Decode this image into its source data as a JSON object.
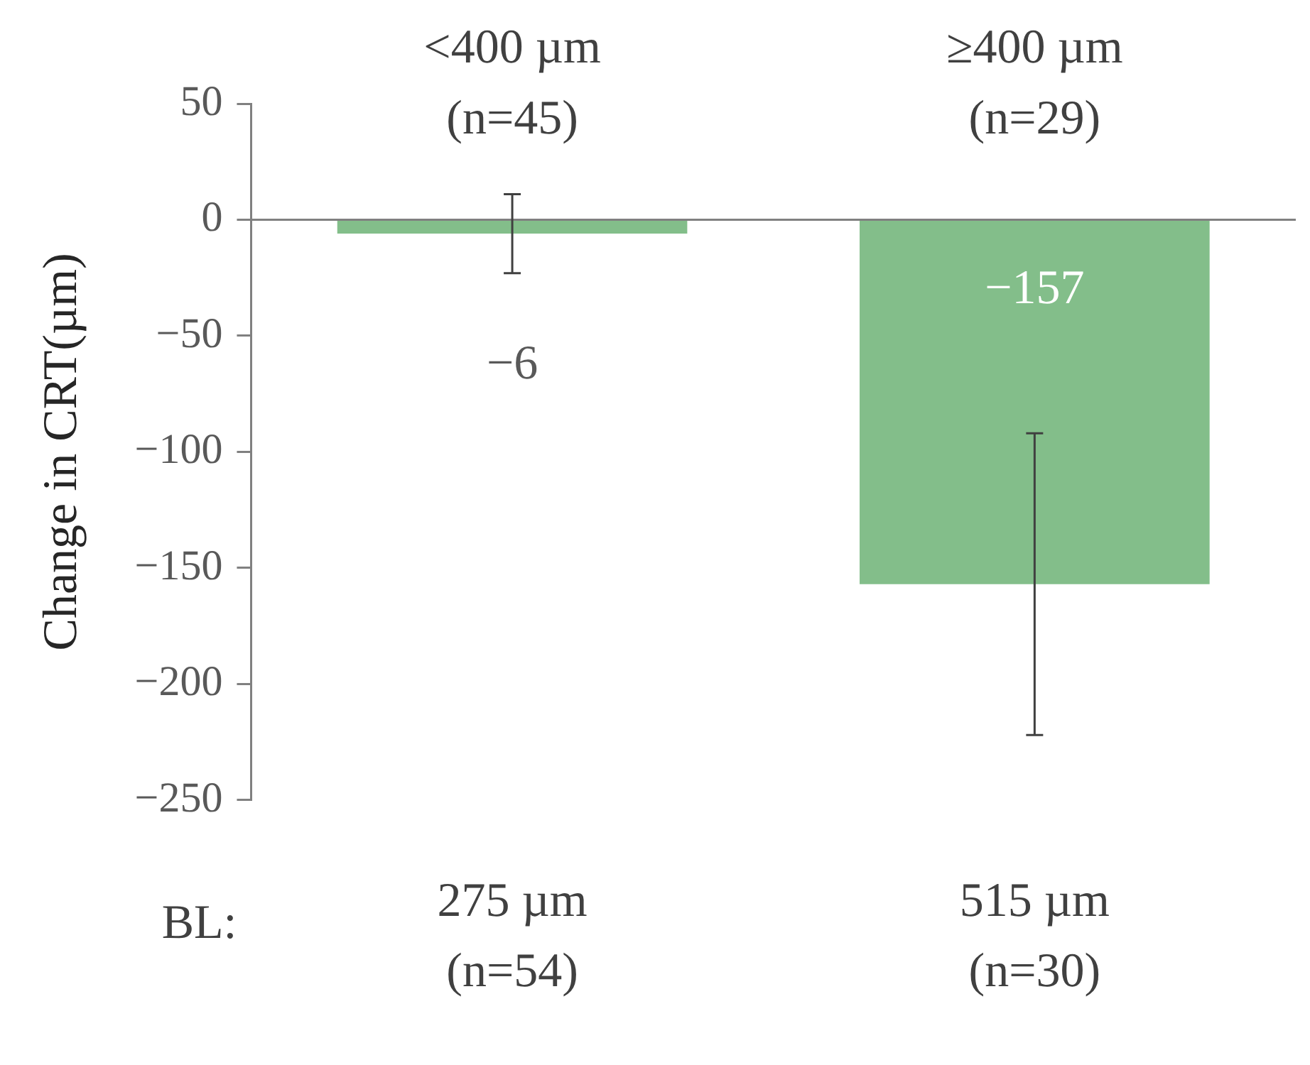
{
  "chart_data": {
    "type": "bar",
    "ylabel": "Change in CRT(µm)",
    "xlabel": "BL:",
    "categories": [
      "275 µm\n(n=54)",
      "515 µm\n(n=30)"
    ],
    "values": [
      -6,
      -157
    ],
    "color": "#83be8a",
    "errors": [
      17,
      65
    ],
    "value_labels": [
      "−6",
      "−157"
    ],
    "ylim": [
      -250,
      50
    ],
    "yticks": [
      {
        "value": -250,
        "label": "−250"
      },
      {
        "value": -200,
        "label": "−200"
      },
      {
        "value": -150,
        "label": "−150"
      },
      {
        "value": -100,
        "label": "−100"
      },
      {
        "value": -50,
        "label": "−50"
      },
      0,
      50
    ],
    "annotations": [
      "<400 µm\n(n=45)",
      "≥400 µm\n(n=29)"
    ]
  }
}
